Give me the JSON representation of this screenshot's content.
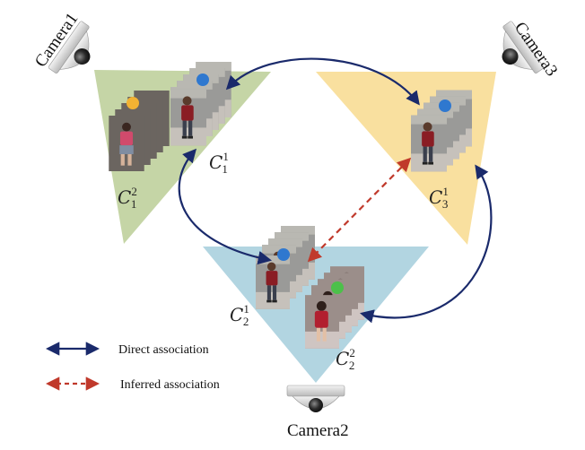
{
  "colors": {
    "camera1_zone": "#c5d5a6",
    "camera2_zone": "#b2d5e1",
    "camera3_zone": "#f9e09f",
    "direct_arrow": "#1a2a6b",
    "inferred_arrow": "#c0392b",
    "dot_blue": "#2f78cf",
    "dot_yellow": "#f2b233",
    "dot_green": "#4cc04a"
  },
  "cameras": [
    {
      "id": "camera1",
      "label": "Camera1"
    },
    {
      "id": "camera2",
      "label": "Camera2"
    },
    {
      "id": "camera3",
      "label": "Camera3"
    }
  ],
  "clusters": [
    {
      "id": "c1_1",
      "base": "C",
      "sup": "1",
      "sub": "1",
      "dot": "blue"
    },
    {
      "id": "c1_2",
      "base": "C",
      "sup": "2",
      "sub": "1",
      "dot": "yellow"
    },
    {
      "id": "c2_1",
      "base": "C",
      "sup": "1",
      "sub": "2",
      "dot": "blue"
    },
    {
      "id": "c2_2",
      "base": "C",
      "sup": "2",
      "sub": "2",
      "dot": "green"
    },
    {
      "id": "c3_1",
      "base": "C",
      "sup": "1",
      "sub": "3",
      "dot": "blue"
    }
  ],
  "legend": {
    "direct": "Direct association",
    "inferred": "Inferred association"
  }
}
